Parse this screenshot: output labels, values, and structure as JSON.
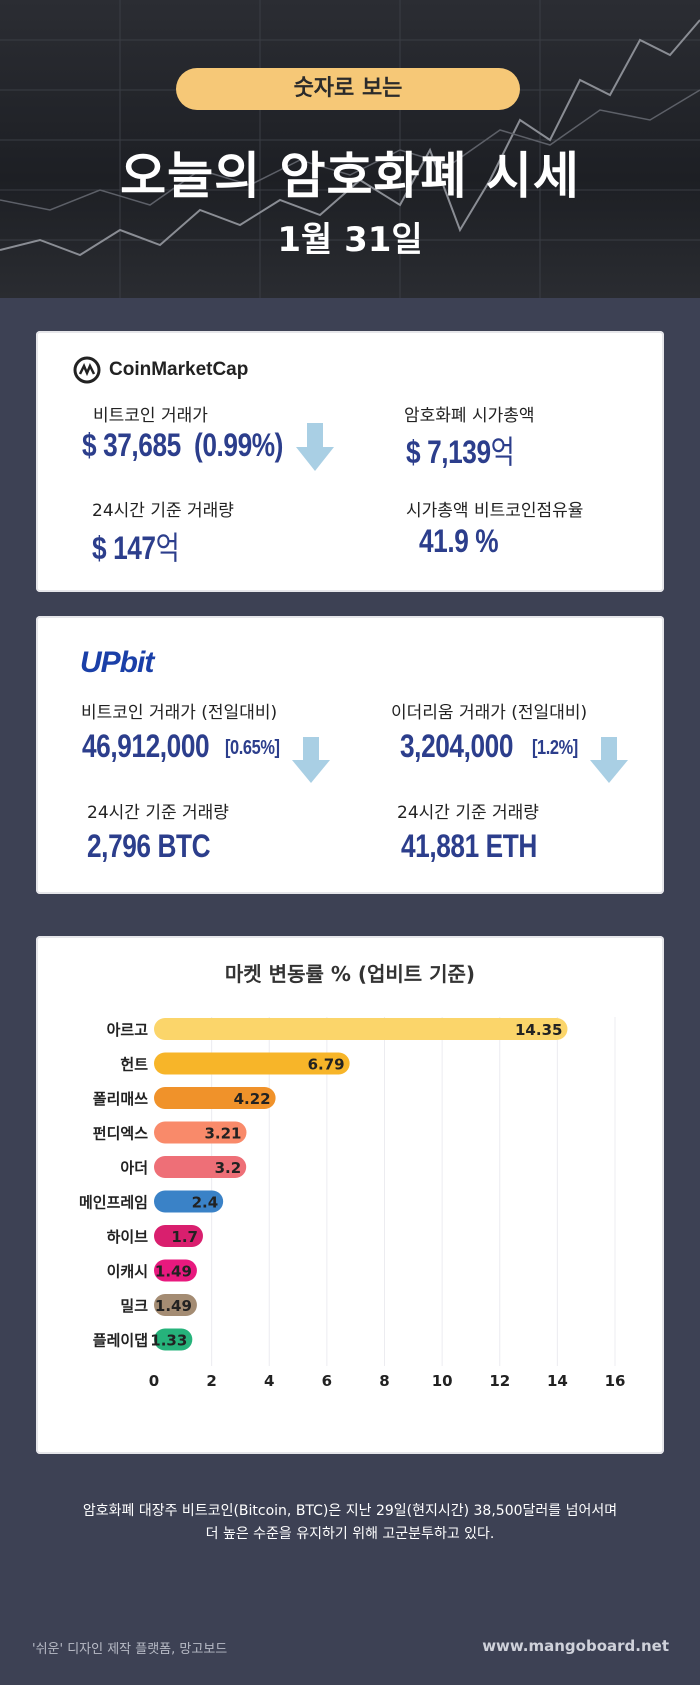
{
  "hero": {
    "pill": "숫자로 보는",
    "title": "오늘의 암호화폐 시세",
    "date": "1월 31일"
  },
  "coinmarketcap": {
    "logo_text": "CoinMarketCap",
    "btc_label": "비트코인 거래가",
    "btc_value": "$ 37,685",
    "btc_change": "(0.99%)",
    "btc_direction": "down",
    "cap_label": "암호화폐 시가총액",
    "cap_value": "$ 7,139",
    "cap_unit": "억",
    "volume_label": "24시간 기준 거래량",
    "volume_value": "$ 147",
    "volume_unit": "억",
    "dominance_label": "시가총액 비트코인점유율",
    "dominance_value": "41.9 %"
  },
  "upbit": {
    "logo_text": "UPbit",
    "btc_label": "비트코인 거래가 (전일대비)",
    "btc_value": "46,912,000",
    "btc_change": "[0.65%]",
    "btc_direction": "down",
    "eth_label": "이더리움 거래가 (전일대비)",
    "eth_value": "3,204,000",
    "eth_change": "[1.2%]",
    "eth_direction": "down",
    "btc_volume_label": "24시간 기준 거래량",
    "btc_volume_value": "2,796 BTC",
    "eth_volume_label": "24시간 기준 거래량",
    "eth_volume_value": "41,881 ETH"
  },
  "chart_data": {
    "type": "bar",
    "orientation": "horizontal",
    "title": "마켓 변동률 % (업비트 기준)",
    "categories": [
      "아르고",
      "헌트",
      "폴리매쓰",
      "펀디엑스",
      "아더",
      "메인프레임",
      "하이브",
      "이캐시",
      "밀크",
      "플레이댑"
    ],
    "values": [
      14.35,
      6.79,
      4.22,
      3.21,
      3.2,
      2.4,
      1.7,
      1.49,
      1.49,
      1.33
    ],
    "value_labels": [
      "14.35",
      "6.79",
      "4.22",
      "3.21",
      "3.2",
      "2.4",
      "1.7",
      "1.49",
      "1.49",
      "1.33"
    ],
    "colors": [
      "#fbd56a",
      "#f7b529",
      "#f0922a",
      "#f98a6a",
      "#ee6f77",
      "#3a82c7",
      "#d91f6e",
      "#e8197e",
      "#a48c73",
      "#26b37b"
    ],
    "xlim": [
      0,
      16
    ],
    "xticks": [
      0,
      2,
      4,
      6,
      8,
      10,
      12,
      14,
      16
    ],
    "grid": true
  },
  "footer": {
    "line1": "암호화폐 대장주 비트코인(Bitcoin, BTC)은 지난 29일(현지시간) 38,500달러를 넘어서며",
    "line2": "더 높은 수준을 유지하기 위해 고군분투하고 있다.",
    "credit": "'쉬운' 디자인 제작 플랫폼, 망고보드",
    "site": "www.mangoboard.net"
  },
  "colors": {
    "background": "#3d4154",
    "accent_pill": "#f6c877",
    "value_text": "#2c3e8c",
    "down_arrow": "#a9cfe4"
  }
}
